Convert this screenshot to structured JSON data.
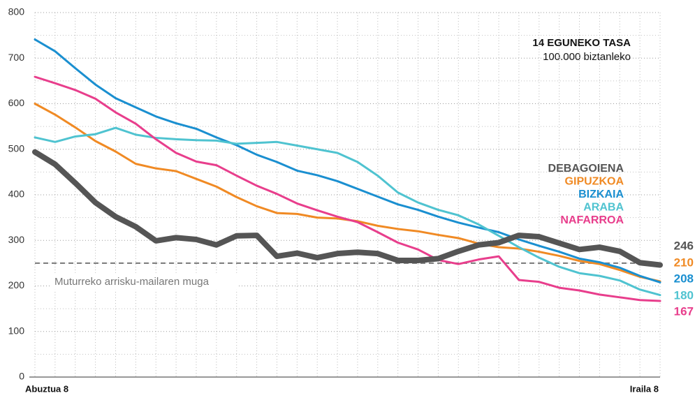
{
  "chart_data": {
    "type": "line",
    "annotation_title": "14 EGUNEKO TASA",
    "annotation_subtitle": "100.000 biztanleko",
    "categories": [
      "Abuztua 8",
      null,
      null,
      null,
      null,
      null,
      null,
      null,
      null,
      null,
      null,
      null,
      null,
      null,
      null,
      null,
      null,
      null,
      null,
      null,
      null,
      null,
      null,
      null,
      null,
      null,
      null,
      null,
      null,
      null,
      null,
      "Iraila 8"
    ],
    "ylim": [
      0,
      800
    ],
    "yticks": [
      0,
      100,
      200,
      300,
      400,
      500,
      600,
      700,
      800
    ],
    "grid": true,
    "threshold": {
      "value": 250,
      "label": "Muturreko arrisku-mailaren muga"
    },
    "series": [
      {
        "name": "DEBAGOIENA",
        "color": "#555555",
        "values": [
          494,
          467,
          426,
          383,
          352,
          330,
          299,
          306,
          302,
          290,
          310,
          311,
          265,
          272,
          262,
          271,
          274,
          271,
          256,
          256,
          260,
          276,
          290,
          295,
          311,
          308,
          294,
          280,
          285,
          276,
          251,
          246
        ]
      },
      {
        "name": "GIPUZKOA",
        "color": "#f08a24",
        "values": [
          600,
          576,
          548,
          518,
          495,
          468,
          458,
          452,
          435,
          418,
          395,
          375,
          360,
          358,
          350,
          348,
          342,
          332,
          325,
          320,
          312,
          305,
          293,
          285,
          282,
          275,
          266,
          255,
          248,
          235,
          220,
          210
        ]
      },
      {
        "name": "BIZKAIA",
        "color": "#1a8fd0",
        "values": [
          741,
          715,
          678,
          642,
          612,
          592,
          572,
          557,
          545,
          526,
          509,
          488,
          472,
          453,
          443,
          430,
          413,
          396,
          379,
          367,
          352,
          339,
          328,
          318,
          302,
          288,
          275,
          260,
          252,
          240,
          222,
          208
        ]
      },
      {
        "name": "ARABA",
        "color": "#4fc3d0",
        "values": [
          526,
          516,
          528,
          533,
          547,
          532,
          525,
          522,
          520,
          519,
          512,
          514,
          516,
          508,
          500,
          492,
          472,
          442,
          405,
          383,
          367,
          355,
          335,
          310,
          285,
          262,
          242,
          228,
          222,
          212,
          192,
          180
        ]
      },
      {
        "name": "NAFARROA",
        "color": "#e83e8c",
        "values": [
          659,
          645,
          630,
          611,
          581,
          556,
          522,
          492,
          473,
          465,
          442,
          420,
          402,
          381,
          366,
          352,
          340,
          318,
          295,
          280,
          257,
          248,
          258,
          265,
          213,
          209,
          196,
          190,
          181,
          175,
          169,
          167
        ]
      }
    ]
  }
}
